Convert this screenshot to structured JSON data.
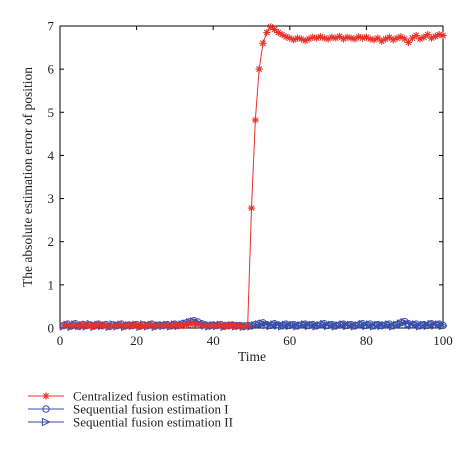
{
  "chart_data": {
    "type": "line",
    "xlabel": "Time",
    "ylabel": "The absolute estimation error of position",
    "xlim": [
      0,
      100
    ],
    "ylim": [
      0,
      7
    ],
    "xticks": [
      0,
      20,
      40,
      60,
      80,
      100
    ],
    "yticks": [
      0,
      1,
      2,
      3,
      4,
      5,
      6,
      7
    ],
    "grid": false,
    "legend_position": "below",
    "series": [
      {
        "name": "Centralized fusion estimation",
        "color": "#e8322b",
        "marker": "star",
        "x": [
          1,
          2,
          3,
          4,
          5,
          6,
          7,
          8,
          9,
          10,
          11,
          12,
          13,
          14,
          15,
          16,
          17,
          18,
          19,
          20,
          21,
          22,
          23,
          24,
          25,
          26,
          27,
          28,
          29,
          30,
          31,
          32,
          33,
          34,
          35,
          36,
          37,
          38,
          39,
          40,
          41,
          42,
          43,
          44,
          45,
          46,
          47,
          48,
          49,
          50,
          51,
          52,
          53,
          54,
          55,
          56,
          57,
          58,
          59,
          60,
          61,
          62,
          63,
          64,
          65,
          66,
          67,
          68,
          69,
          70,
          71,
          72,
          73,
          74,
          75,
          76,
          77,
          78,
          79,
          80,
          81,
          82,
          83,
          84,
          85,
          86,
          87,
          88,
          89,
          90,
          91,
          92,
          93,
          94,
          95,
          96,
          97,
          98,
          99,
          100
        ],
        "y": [
          0.05,
          0.08,
          0.04,
          0.07,
          0.03,
          0.09,
          0.05,
          0.06,
          0.04,
          0.08,
          0.05,
          0.07,
          0.03,
          0.06,
          0.05,
          0.08,
          0.04,
          0.06,
          0.05,
          0.07,
          0.04,
          0.06,
          0.05,
          0.08,
          0.04,
          0.06,
          0.05,
          0.07,
          0.04,
          0.08,
          0.05,
          0.06,
          0.07,
          0.09,
          0.1,
          0.08,
          0.06,
          0.05,
          0.04,
          0.06,
          0.05,
          0.07,
          0.04,
          0.05,
          0.06,
          0.04,
          0.05,
          0.03,
          0.05,
          2.78,
          4.82,
          6.0,
          6.6,
          6.85,
          6.98,
          6.92,
          6.85,
          6.8,
          6.75,
          6.72,
          6.68,
          6.72,
          6.7,
          6.66,
          6.7,
          6.74,
          6.72,
          6.75,
          6.72,
          6.7,
          6.74,
          6.72,
          6.76,
          6.7,
          6.74,
          6.72,
          6.7,
          6.75,
          6.72,
          6.74,
          6.7,
          6.68,
          6.72,
          6.65,
          6.7,
          6.74,
          6.68,
          6.72,
          6.75,
          6.7,
          6.62,
          6.72,
          6.78,
          6.7,
          6.74,
          6.8,
          6.72,
          6.76,
          6.8,
          6.78
        ]
      },
      {
        "name": "Sequential fusion estimation I",
        "color": "#3a4ea8",
        "marker": "circle",
        "x": [
          1,
          2,
          3,
          4,
          5,
          6,
          7,
          8,
          9,
          10,
          11,
          12,
          13,
          14,
          15,
          16,
          17,
          18,
          19,
          20,
          21,
          22,
          23,
          24,
          25,
          26,
          27,
          28,
          29,
          30,
          31,
          32,
          33,
          34,
          35,
          36,
          37,
          38,
          39,
          40,
          41,
          42,
          43,
          44,
          45,
          46,
          47,
          48,
          49,
          50,
          51,
          52,
          53,
          54,
          55,
          56,
          57,
          58,
          59,
          60,
          61,
          62,
          63,
          64,
          65,
          66,
          67,
          68,
          69,
          70,
          71,
          72,
          73,
          74,
          75,
          76,
          77,
          78,
          79,
          80,
          81,
          82,
          83,
          84,
          85,
          86,
          87,
          88,
          89,
          90,
          91,
          92,
          93,
          94,
          95,
          96,
          97,
          98,
          99,
          100
        ],
        "y": [
          0.06,
          0.09,
          0.05,
          0.1,
          0.04,
          0.08,
          0.06,
          0.07,
          0.05,
          0.09,
          0.06,
          0.08,
          0.04,
          0.07,
          0.06,
          0.09,
          0.05,
          0.07,
          0.06,
          0.08,
          0.05,
          0.07,
          0.06,
          0.09,
          0.05,
          0.07,
          0.06,
          0.08,
          0.05,
          0.09,
          0.06,
          0.1,
          0.12,
          0.15,
          0.17,
          0.14,
          0.1,
          0.07,
          0.05,
          0.07,
          0.06,
          0.08,
          0.05,
          0.06,
          0.07,
          0.05,
          0.06,
          0.04,
          0.06,
          0.05,
          0.08,
          0.1,
          0.12,
          0.08,
          0.06,
          0.1,
          0.07,
          0.05,
          0.09,
          0.06,
          0.08,
          0.05,
          0.07,
          0.09,
          0.06,
          0.08,
          0.05,
          0.07,
          0.1,
          0.06,
          0.08,
          0.05,
          0.07,
          0.09,
          0.06,
          0.08,
          0.05,
          0.07,
          0.1,
          0.06,
          0.09,
          0.05,
          0.08,
          0.06,
          0.07,
          0.09,
          0.05,
          0.08,
          0.12,
          0.15,
          0.1,
          0.07,
          0.09,
          0.05,
          0.08,
          0.06,
          0.1,
          0.07,
          0.09,
          0.06
        ]
      },
      {
        "name": "Sequential fusion estimation II",
        "color": "#3a4ea8",
        "marker": "triangle-right",
        "x": [
          1,
          2,
          3,
          4,
          5,
          6,
          7,
          8,
          9,
          10,
          11,
          12,
          13,
          14,
          15,
          16,
          17,
          18,
          19,
          20,
          21,
          22,
          23,
          24,
          25,
          26,
          27,
          28,
          29,
          30,
          31,
          32,
          33,
          34,
          35,
          36,
          37,
          38,
          39,
          40,
          41,
          42,
          43,
          44,
          45,
          46,
          47,
          48,
          49,
          50,
          51,
          52,
          53,
          54,
          55,
          56,
          57,
          58,
          59,
          60,
          61,
          62,
          63,
          64,
          65,
          66,
          67,
          68,
          69,
          70,
          71,
          72,
          73,
          74,
          75,
          76,
          77,
          78,
          79,
          80,
          81,
          82,
          83,
          84,
          85,
          86,
          87,
          88,
          89,
          90,
          91,
          92,
          93,
          94,
          95,
          96,
          97,
          98,
          99,
          100
        ],
        "y": [
          0.04,
          0.07,
          0.03,
          0.08,
          0.05,
          0.06,
          0.04,
          0.09,
          0.03,
          0.07,
          0.05,
          0.06,
          0.03,
          0.08,
          0.04,
          0.07,
          0.03,
          0.06,
          0.05,
          0.07,
          0.03,
          0.08,
          0.04,
          0.07,
          0.03,
          0.06,
          0.05,
          0.07,
          0.04,
          0.08,
          0.05,
          0.08,
          0.1,
          0.13,
          0.15,
          0.12,
          0.08,
          0.06,
          0.04,
          0.06,
          0.05,
          0.07,
          0.03,
          0.05,
          0.06,
          0.04,
          0.05,
          0.03,
          0.04,
          0.04,
          0.06,
          0.08,
          0.1,
          0.07,
          0.05,
          0.08,
          0.06,
          0.04,
          0.07,
          0.05,
          0.07,
          0.04,
          0.06,
          0.08,
          0.05,
          0.07,
          0.04,
          0.06,
          0.09,
          0.05,
          0.07,
          0.04,
          0.06,
          0.08,
          0.05,
          0.07,
          0.04,
          0.06,
          0.09,
          0.05,
          0.08,
          0.04,
          0.07,
          0.05,
          0.06,
          0.08,
          0.04,
          0.07,
          0.1,
          0.13,
          0.09,
          0.06,
          0.08,
          0.04,
          0.07,
          0.05,
          0.09,
          0.06,
          0.08,
          0.05
        ]
      }
    ]
  }
}
